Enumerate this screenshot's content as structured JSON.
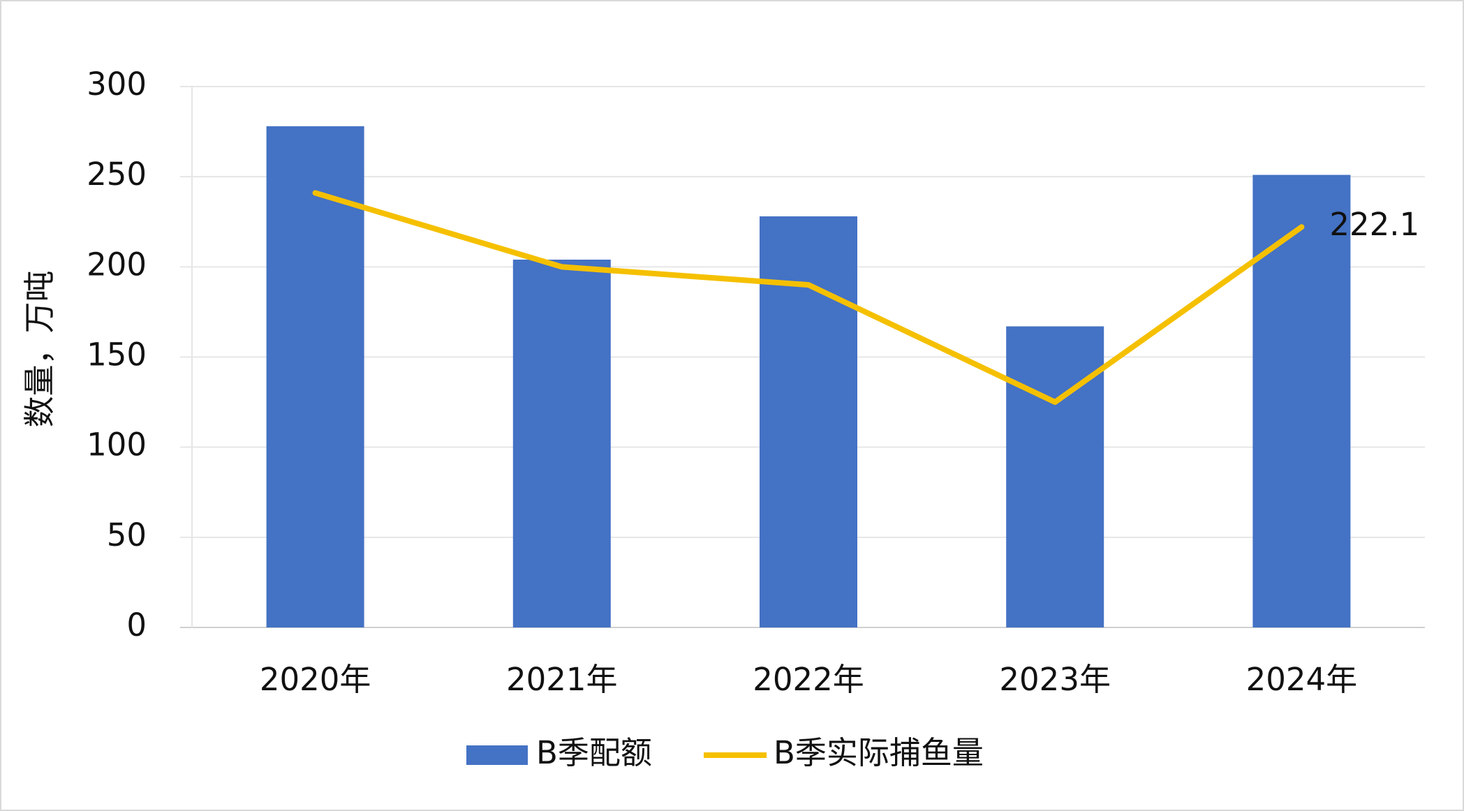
{
  "chart_data": {
    "type": "bar_line",
    "y_label": "数量，万吨",
    "categories": [
      "2020年",
      "2021年",
      "2022年",
      "2023年",
      "2024年"
    ],
    "series": [
      {
        "name": "B季配额",
        "type": "bar",
        "color": "#4472c4",
        "values": [
          278,
          204,
          228,
          167,
          251
        ]
      },
      {
        "name": "B季实际捕鱼量",
        "type": "line",
        "color": "#f5c000",
        "values": [
          241,
          200,
          190,
          125,
          222.1
        ],
        "value_labels": [
          null,
          null,
          null,
          null,
          "222.1"
        ]
      }
    ],
    "ylim": [
      0,
      300
    ],
    "yticks": [
      0,
      50,
      100,
      150,
      200,
      250,
      300
    ],
    "grid": true,
    "legend": "bottom"
  }
}
